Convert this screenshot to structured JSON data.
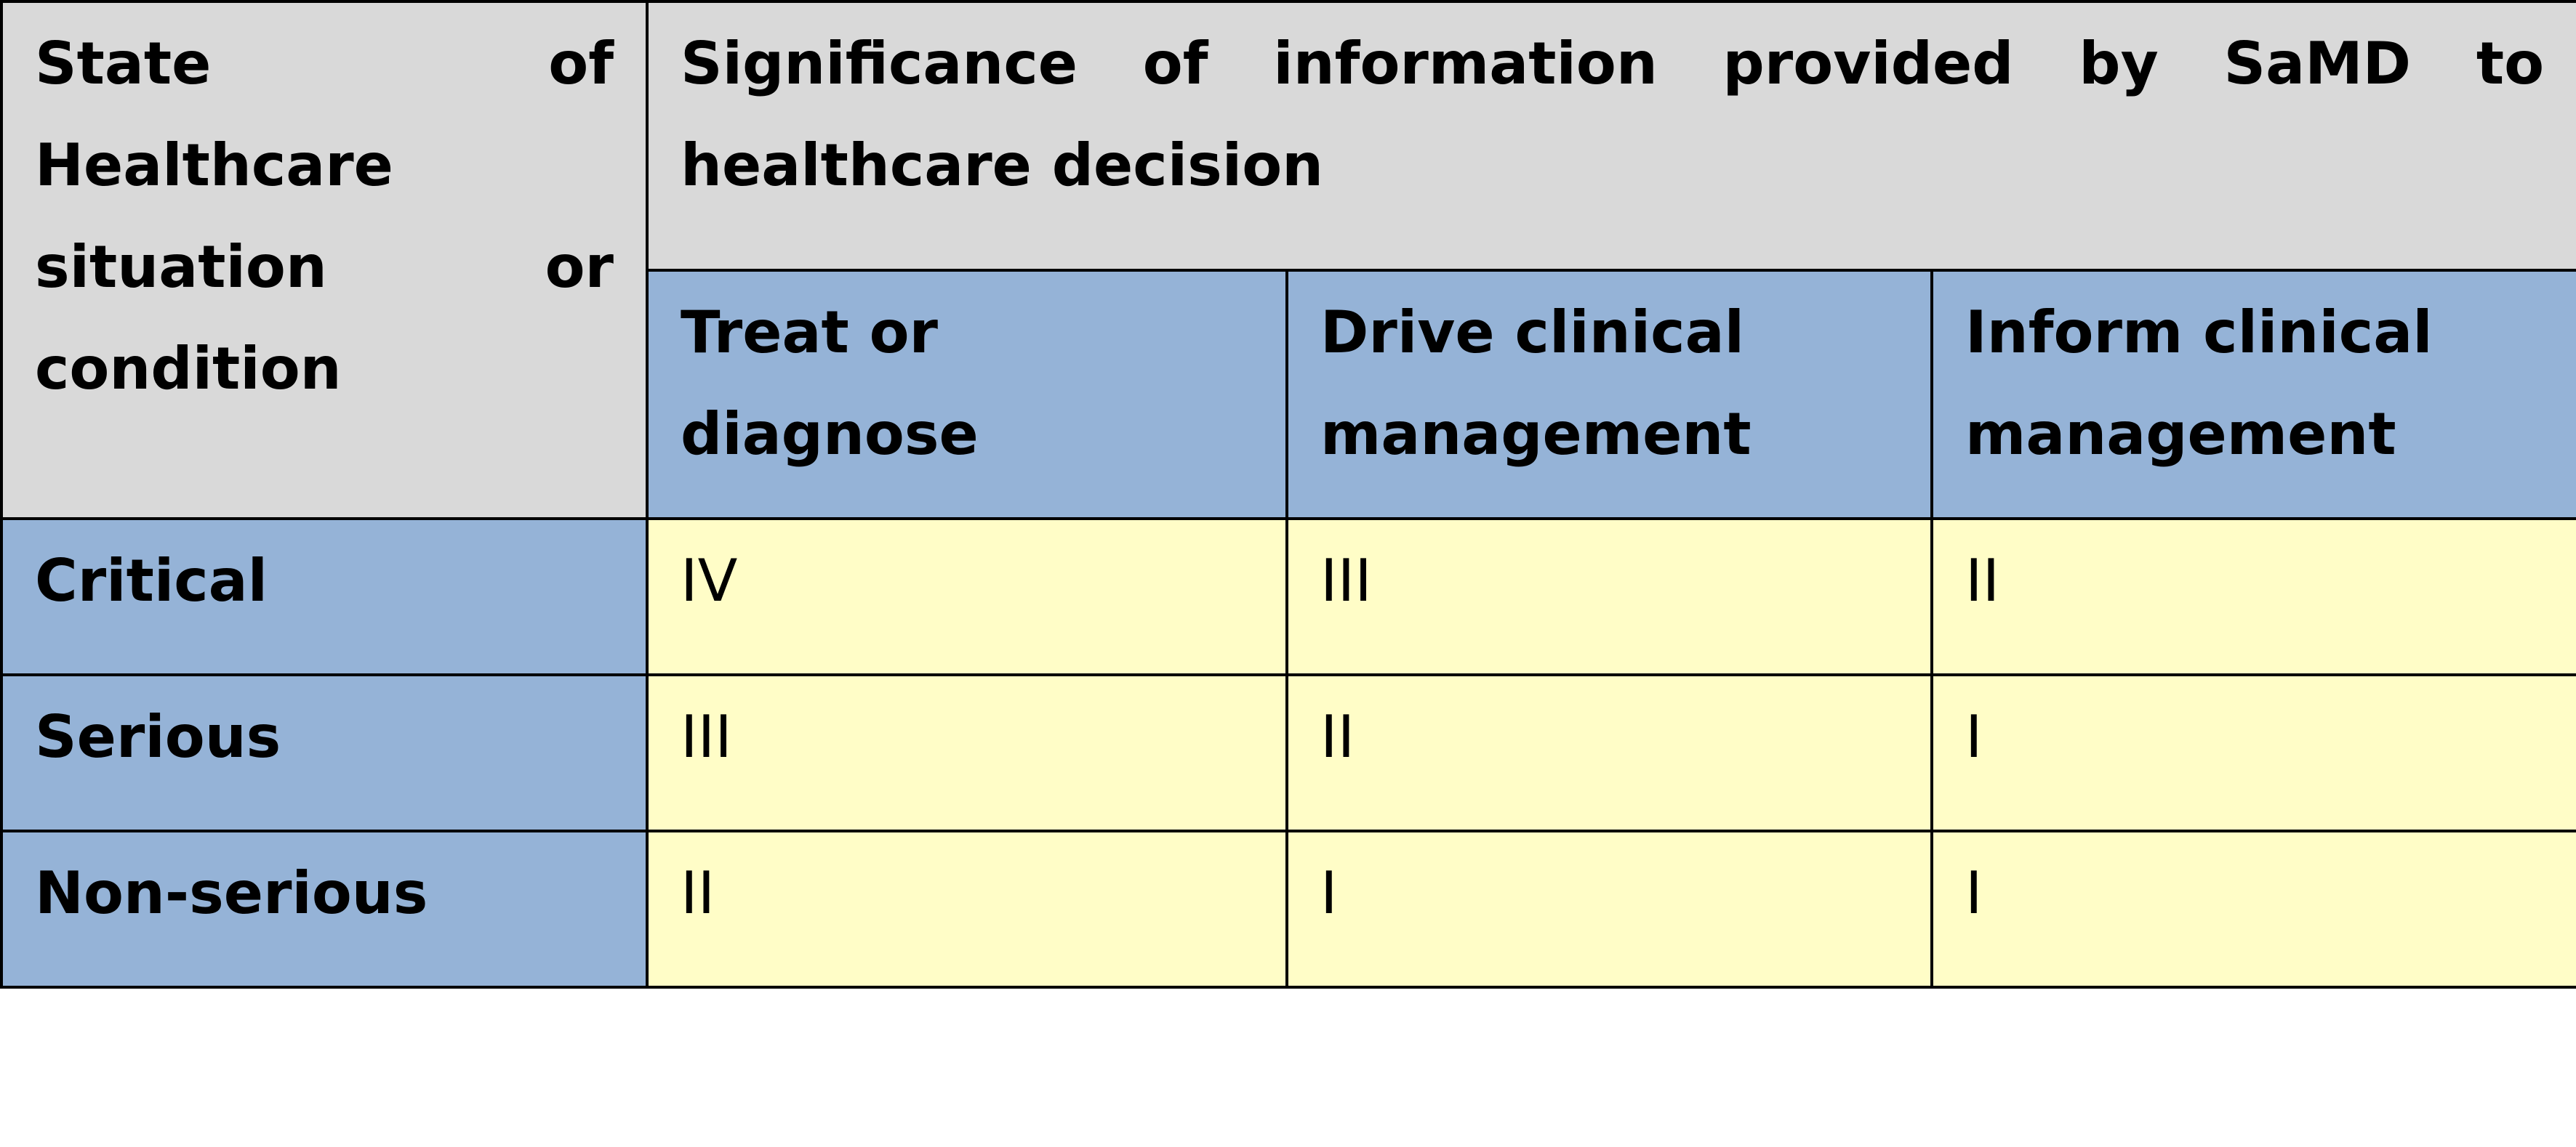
{
  "table": {
    "corner_header": "State of Healthcare situation or condition",
    "group_header": "Significance of information provided by SaMD to healthcare decision",
    "column_headers": [
      "Treat or diagnose",
      "Drive clinical management",
      "Inform clinical management"
    ],
    "rows": [
      {
        "label": "Critical",
        "cells": [
          "IV",
          "III",
          "II"
        ]
      },
      {
        "label": "Serious",
        "cells": [
          "III",
          "II",
          "I"
        ]
      },
      {
        "label": "Non-serious",
        "cells": [
          "II",
          "I",
          "I"
        ]
      }
    ]
  },
  "colors": {
    "header_grey": "#d9d9d9",
    "header_blue": "#95b3d7",
    "cell_yellow": "#fffdc7",
    "border": "#000000"
  }
}
